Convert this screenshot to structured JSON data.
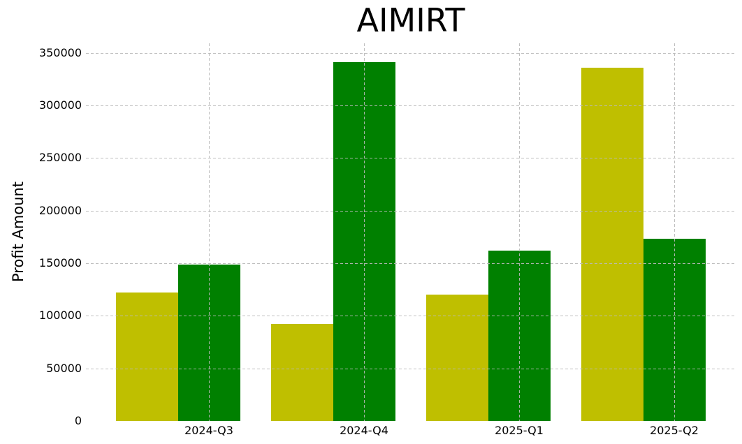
{
  "chart_data": {
    "type": "bar",
    "title": "AIMIRT",
    "xlabel": "",
    "ylabel": "Profit Amount",
    "categories": [
      "2024-Q3",
      "2024-Q4",
      "2025-Q1",
      "2025-Q2"
    ],
    "series": [
      {
        "name": "yellow-series",
        "color": "#bfbf00",
        "values": [
          122000,
          92000,
          120000,
          336000
        ]
      },
      {
        "name": "green-series",
        "color": "#008000",
        "values": [
          149000,
          341000,
          162000,
          173000
        ]
      }
    ],
    "ylim": [
      0,
      359000
    ],
    "yticks": [
      0,
      50000,
      100000,
      150000,
      200000,
      250000,
      300000,
      350000
    ],
    "grid": true,
    "grid_style": "dashed",
    "legend": "none",
    "background_color": "#ffffff",
    "grid_color": "#c3c3c3",
    "text_color": "#000000"
  }
}
